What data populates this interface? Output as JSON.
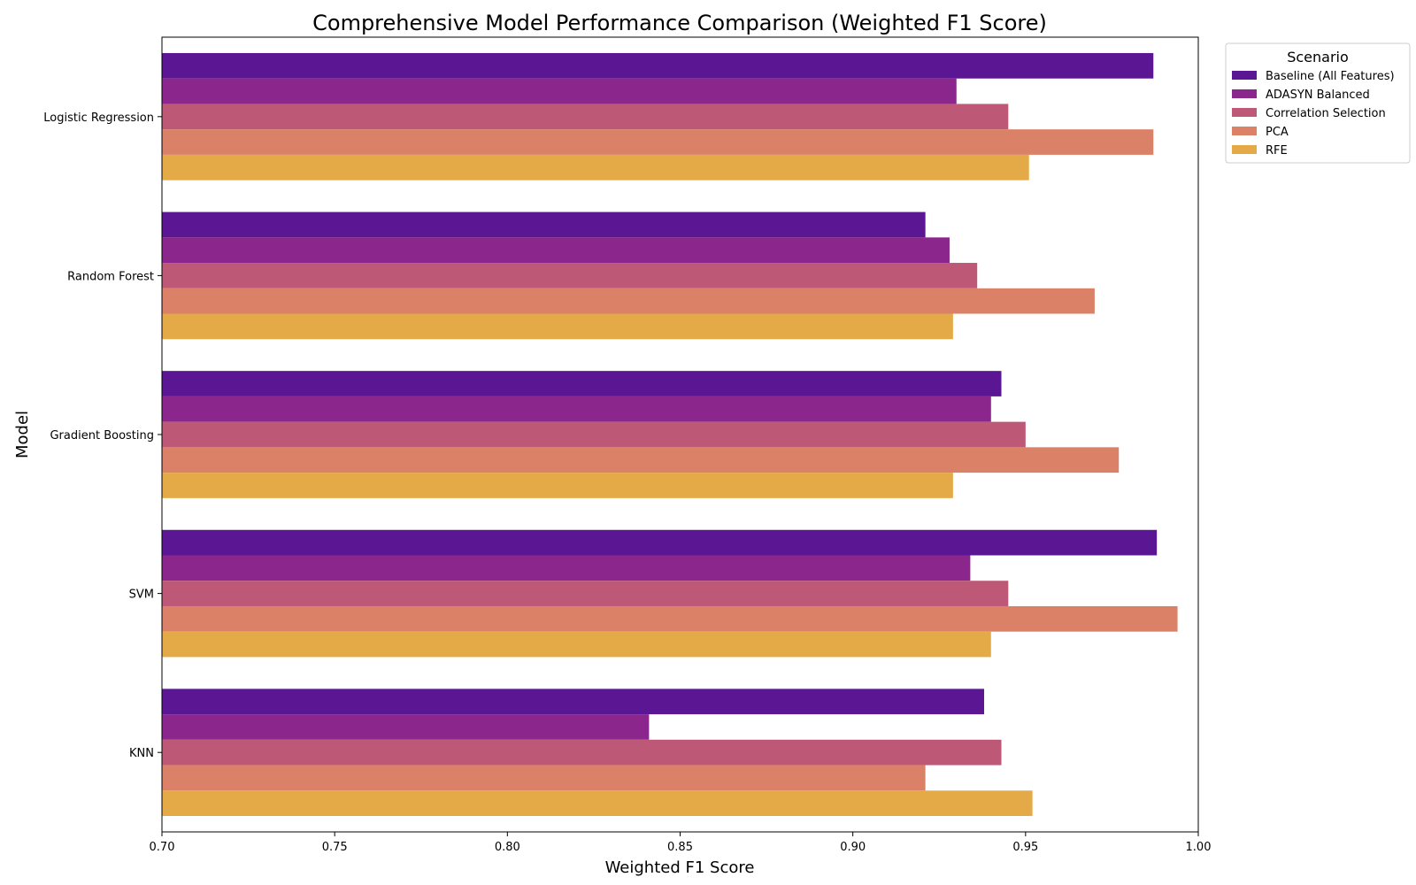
{
  "chart_data": {
    "type": "bar",
    "orientation": "horizontal",
    "title": "Comprehensive Model Performance Comparison (Weighted F1 Score)",
    "xlabel": "Weighted F1 Score",
    "ylabel": "Model",
    "xlim": [
      0.7,
      1.0
    ],
    "xticks": [
      "0.70",
      "0.75",
      "0.80",
      "0.85",
      "0.90",
      "0.95",
      "1.00"
    ],
    "grid": false,
    "legend": {
      "title": "Scenario",
      "placement": "outside-top-right"
    },
    "categories": [
      "Logistic Regression",
      "Random Forest",
      "Gradient Boosting",
      "SVM",
      "KNN"
    ],
    "series": [
      {
        "name": "Baseline (All Features)",
        "color": "#5a1693",
        "values": [
          0.987,
          0.921,
          0.943,
          0.988,
          0.938
        ]
      },
      {
        "name": "ADASYN Balanced",
        "color": "#8b278c",
        "values": [
          0.93,
          0.928,
          0.94,
          0.934,
          0.841
        ]
      },
      {
        "name": "Correlation Selection",
        "color": "#bd5877",
        "values": [
          0.945,
          0.936,
          0.95,
          0.945,
          0.943
        ]
      },
      {
        "name": "PCA",
        "color": "#da8168",
        "values": [
          0.987,
          0.97,
          0.977,
          0.994,
          0.921
        ]
      },
      {
        "name": "RFE",
        "color": "#e4aa47",
        "values": [
          0.951,
          0.929,
          0.929,
          0.94,
          0.952
        ]
      }
    ]
  }
}
